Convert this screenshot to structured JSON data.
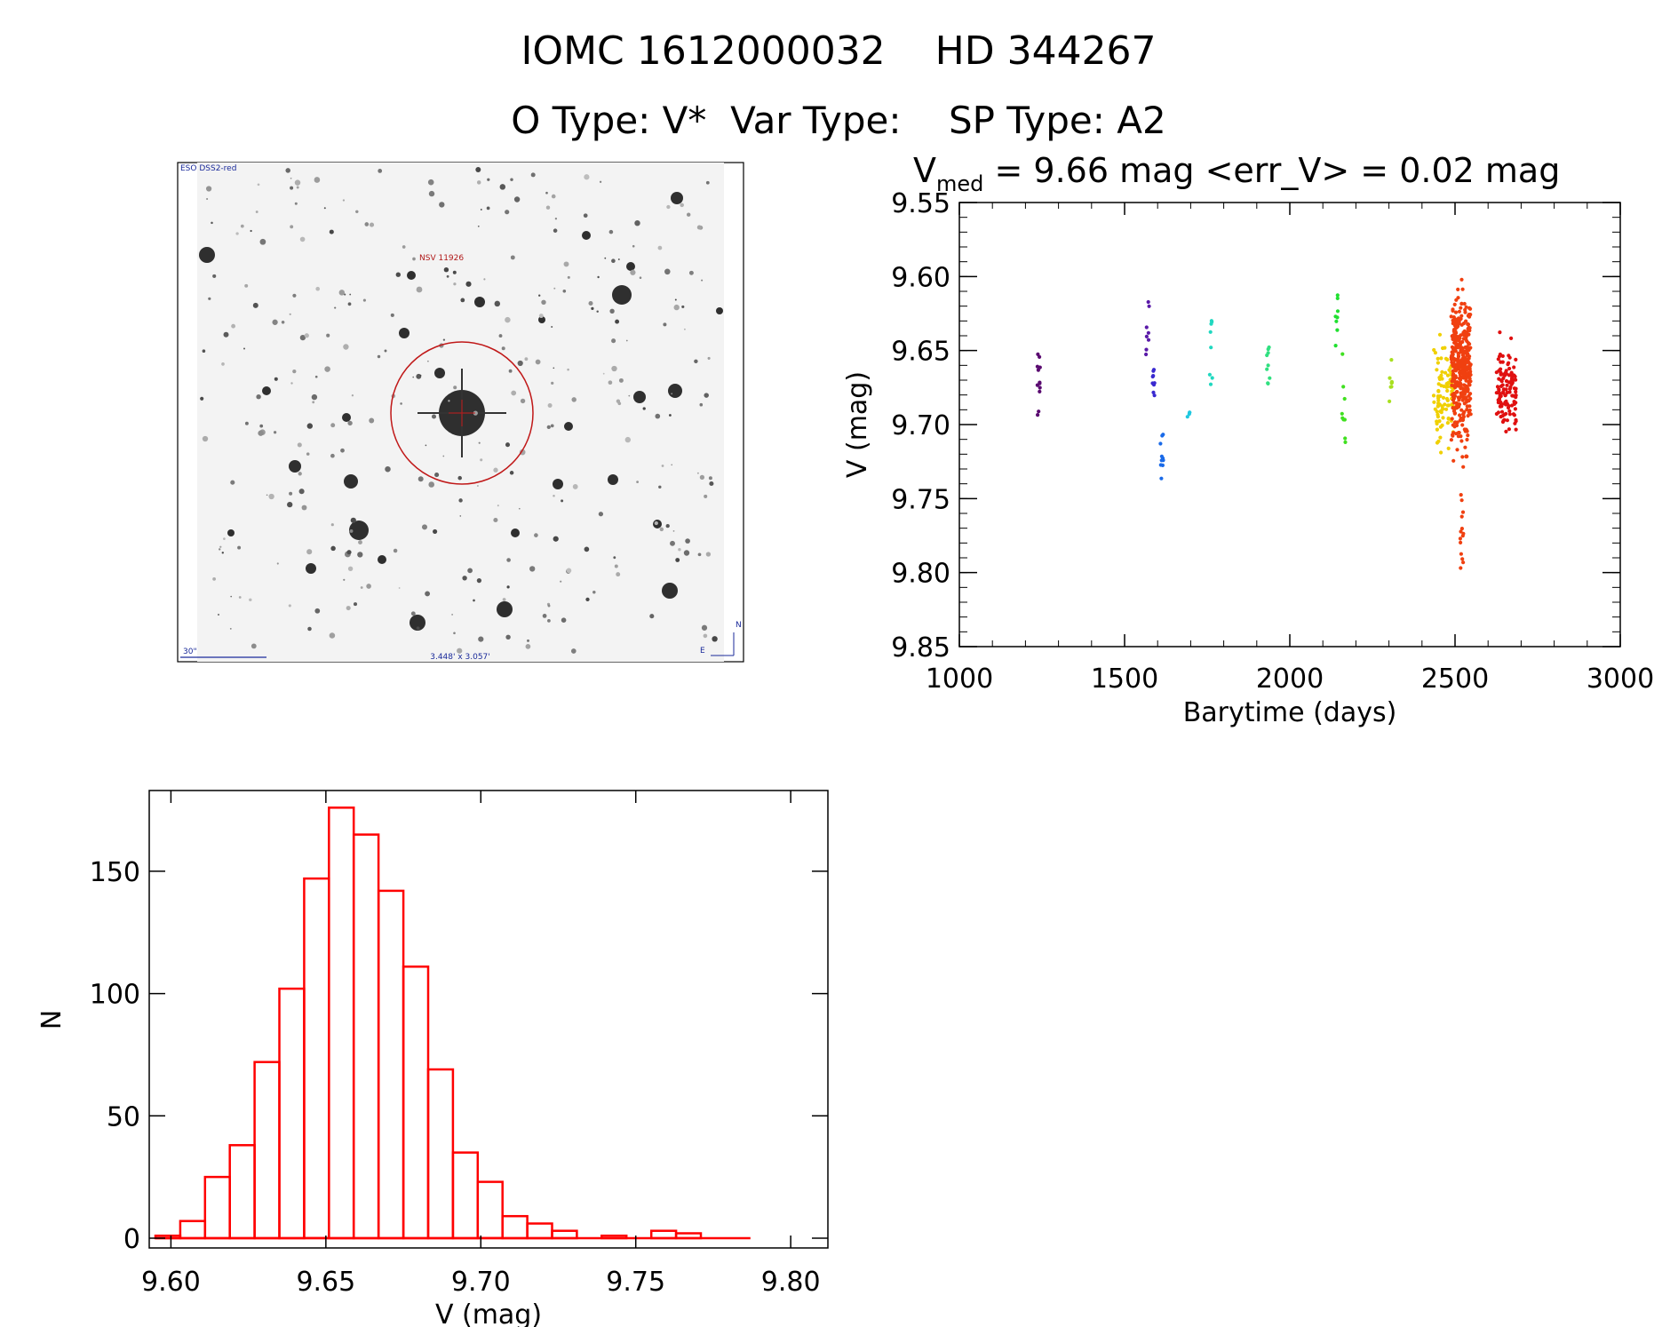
{
  "header": {
    "title": "IOMC 1612000032    HD 344267",
    "subtitle": "O Type: V*  Var Type:    SP Type: A2"
  },
  "image_panel": {
    "survey_label": "ESO DSS2-red",
    "star_label": "NSV 11926",
    "scale_label": "30\"",
    "size_label": "3.448' x 3.057'",
    "north_label": "N",
    "east_label": "E"
  },
  "chart_data": [
    {
      "type": "scatter",
      "title_prefix": "V",
      "title_sub": "med",
      "title_rest": " = 9.66 mag <err_V> = 0.02 mag",
      "xlabel": "Barytime (days)",
      "ylabel": "V (mag)",
      "xlim": [
        1000,
        3000
      ],
      "ylim": [
        9.55,
        9.85
      ],
      "y_inverted": true,
      "xticks": [
        "1000",
        "1500",
        "2000",
        "2500",
        "3000"
      ],
      "xtick_values": [
        1000,
        1500,
        2000,
        2500,
        3000
      ],
      "yticks": [
        "9.55",
        "9.60",
        "9.65",
        "9.70",
        "9.75",
        "9.80",
        "9.85"
      ],
      "ytick_values": [
        9.55,
        9.6,
        9.65,
        9.7,
        9.75,
        9.8,
        9.85
      ],
      "groups": [
        {
          "x": 1240,
          "ymin": 9.648,
          "ymax": 9.695,
          "n": 12,
          "color": "#5a0a70"
        },
        {
          "x": 1570,
          "ymin": 9.614,
          "ymax": 9.662,
          "n": 8,
          "color": "#5a1aa8"
        },
        {
          "x": 1588,
          "ymin": 9.657,
          "ymax": 9.688,
          "n": 9,
          "color": "#3a2ad0"
        },
        {
          "x": 1612,
          "ymin": 9.705,
          "ymax": 9.744,
          "n": 10,
          "color": "#1a6ae8"
        },
        {
          "x": 1695,
          "ymin": 9.69,
          "ymax": 9.695,
          "n": 4,
          "color": "#20c8e0"
        },
        {
          "x": 1762,
          "ymin": 9.627,
          "ymax": 9.676,
          "n": 8,
          "color": "#20d8c0"
        },
        {
          "x": 1935,
          "ymin": 9.63,
          "ymax": 9.678,
          "n": 9,
          "color": "#30e080"
        },
        {
          "x": 2140,
          "ymin": 9.612,
          "ymax": 9.65,
          "n": 8,
          "color": "#20e030"
        },
        {
          "x": 2163,
          "ymin": 9.645,
          "ymax": 9.712,
          "n": 9,
          "color": "#40e020"
        },
        {
          "x": 2305,
          "ymin": 9.655,
          "ymax": 9.69,
          "n": 8,
          "color": "#a8e020"
        },
        {
          "x": 2465,
          "ymin": 9.635,
          "ymax": 9.733,
          "n": 90,
          "color": "#f0d000"
        },
        {
          "x": 2518,
          "ymin": 9.595,
          "ymax": 9.735,
          "n": 400,
          "color": "#f04010"
        },
        {
          "x": 2520,
          "ymin": 9.745,
          "ymax": 9.802,
          "n": 14,
          "color": "#f04010"
        },
        {
          "x": 2655,
          "ymin": 9.632,
          "ymax": 9.718,
          "n": 120,
          "color": "#e01010"
        }
      ]
    },
    {
      "type": "bar",
      "subtype": "histogram",
      "xlabel": "V (mag)",
      "ylabel": "N",
      "xlim": [
        9.593,
        9.812
      ],
      "ylim": [
        -4,
        183
      ],
      "xticks": [
        "9.60",
        "9.65",
        "9.70",
        "9.75",
        "9.80"
      ],
      "xtick_values": [
        9.6,
        9.65,
        9.7,
        9.75,
        9.8
      ],
      "yticks": [
        "0",
        "50",
        "100",
        "150"
      ],
      "ytick_values": [
        0,
        50,
        100,
        150
      ],
      "bin_start": 9.595,
      "bin_width": 0.008,
      "values": [
        1,
        7,
        25,
        38,
        72,
        102,
        147,
        176,
        165,
        142,
        111,
        69,
        35,
        23,
        9,
        6,
        3,
        0,
        1,
        0,
        3,
        2,
        0,
        0
      ],
      "color": "#ff0000"
    }
  ]
}
